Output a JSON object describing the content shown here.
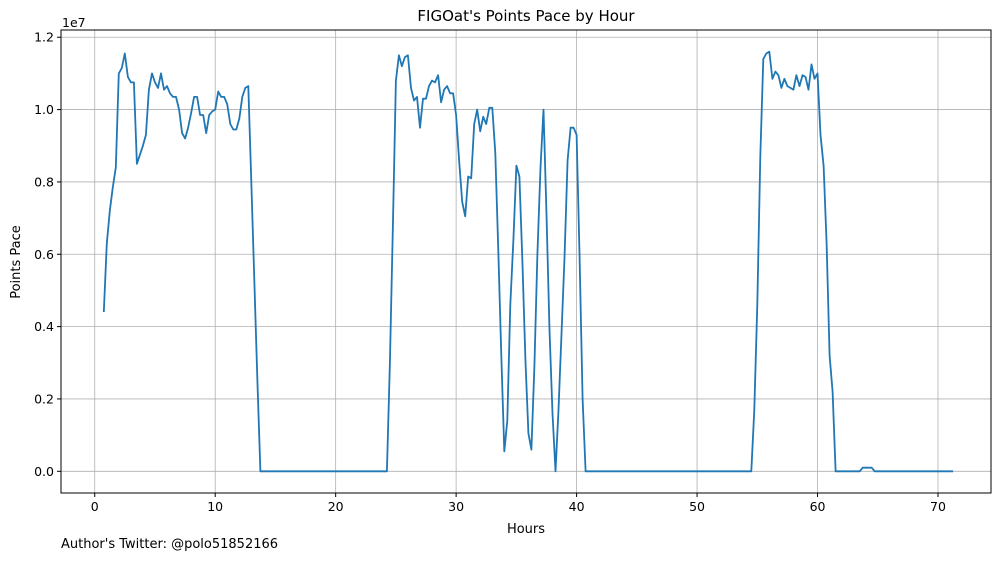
{
  "chart_data": {
    "type": "line",
    "title": "FIGOat's Points Pace by Hour",
    "xlabel": "Hours",
    "ylabel": "Points Pace",
    "y_scale_label": "1e7",
    "xlim": [
      -2.8,
      74.4
    ],
    "ylim": [
      -0.06,
      1.22
    ],
    "x_ticks": [
      0,
      10,
      20,
      30,
      40,
      50,
      60,
      70
    ],
    "x_tick_labels": [
      "0",
      "10",
      "20",
      "30",
      "40",
      "50",
      "60",
      "70"
    ],
    "y_ticks": [
      0.0,
      0.2,
      0.4,
      0.6,
      0.8,
      1.0,
      1.2
    ],
    "y_tick_labels": [
      "0.0",
      "0.2",
      "0.4",
      "0.6",
      "0.8",
      "1.0",
      "1.2"
    ],
    "grid": true,
    "series": [
      {
        "color": "#1f77b4",
        "x": [
          0.75,
          1.0,
          1.25,
          1.5,
          1.75,
          2.0,
          2.25,
          2.5,
          2.75,
          3.0,
          3.25,
          3.5,
          3.75,
          4.0,
          4.25,
          4.5,
          4.75,
          5.0,
          5.25,
          5.5,
          5.75,
          6.0,
          6.25,
          6.5,
          6.75,
          7.0,
          7.25,
          7.5,
          7.75,
          8.0,
          8.25,
          8.5,
          8.75,
          9.0,
          9.25,
          9.5,
          9.75,
          10.0,
          10.25,
          10.5,
          10.75,
          11.0,
          11.25,
          11.5,
          11.75,
          12.0,
          12.25,
          12.5,
          12.75,
          13.0,
          13.25,
          13.5,
          13.75,
          14.0,
          24.25,
          24.5,
          24.75,
          25.0,
          25.25,
          25.5,
          25.75,
          26.0,
          26.25,
          26.5,
          26.75,
          27.0,
          27.25,
          27.5,
          27.75,
          28.0,
          28.25,
          28.5,
          28.75,
          29.0,
          29.25,
          29.5,
          29.75,
          30.0,
          30.25,
          30.5,
          30.75,
          31.0,
          31.25,
          31.5,
          31.75,
          32.0,
          32.25,
          32.5,
          32.75,
          33.0,
          33.25,
          33.5,
          33.75,
          34.0,
          34.25,
          34.5,
          34.75,
          35.0,
          35.25,
          35.5,
          35.75,
          36.0,
          36.25,
          36.5,
          36.75,
          37.0,
          37.25,
          37.5,
          37.75,
          38.0,
          38.25,
          38.5,
          38.75,
          39.0,
          39.25,
          39.5,
          39.75,
          40.0,
          40.25,
          40.5,
          40.75,
          41.0,
          41.25,
          54.5,
          54.75,
          55.0,
          55.25,
          55.5,
          55.75,
          56.0,
          56.25,
          56.5,
          56.75,
          57.0,
          57.25,
          57.5,
          57.75,
          58.0,
          58.25,
          58.5,
          58.75,
          59.0,
          59.25,
          59.5,
          59.75,
          60.0,
          60.25,
          60.5,
          60.75,
          61.0,
          61.25,
          61.5,
          63.5,
          63.75,
          64.0,
          64.25,
          64.5,
          64.75,
          65.0,
          71.25
        ],
        "values": [
          0.44,
          0.63,
          0.72,
          0.785,
          0.84,
          1.1,
          1.115,
          1.155,
          1.09,
          1.075,
          1.075,
          0.85,
          0.875,
          0.9,
          0.93,
          1.055,
          1.1,
          1.075,
          1.06,
          1.1,
          1.055,
          1.065,
          1.045,
          1.035,
          1.035,
          1.0,
          0.935,
          0.92,
          0.95,
          0.99,
          1.035,
          1.035,
          0.985,
          0.985,
          0.935,
          0.985,
          0.995,
          1.0,
          1.05,
          1.035,
          1.035,
          1.015,
          0.96,
          0.945,
          0.945,
          0.975,
          1.035,
          1.06,
          1.065,
          0.8,
          0.53,
          0.25,
          0.0,
          0.0,
          0.0,
          0.3,
          0.68,
          1.08,
          1.15,
          1.12,
          1.145,
          1.15,
          1.06,
          1.025,
          1.035,
          0.95,
          1.03,
          1.03,
          1.065,
          1.08,
          1.075,
          1.095,
          1.02,
          1.055,
          1.065,
          1.045,
          1.045,
          0.985,
          0.86,
          0.745,
          0.705,
          0.815,
          0.81,
          0.96,
          1.0,
          0.94,
          0.98,
          0.96,
          1.005,
          1.005,
          0.88,
          0.61,
          0.32,
          0.055,
          0.14,
          0.46,
          0.64,
          0.845,
          0.815,
          0.58,
          0.31,
          0.105,
          0.06,
          0.29,
          0.6,
          0.84,
          1.0,
          0.71,
          0.39,
          0.16,
          0.0,
          0.17,
          0.38,
          0.59,
          0.86,
          0.95,
          0.95,
          0.93,
          0.59,
          0.2,
          0.0,
          0.0,
          0.0,
          0.0,
          0.17,
          0.46,
          0.87,
          1.14,
          1.155,
          1.16,
          1.085,
          1.105,
          1.095,
          1.06,
          1.085,
          1.065,
          1.06,
          1.055,
          1.095,
          1.065,
          1.095,
          1.09,
          1.055,
          1.125,
          1.085,
          1.1,
          0.93,
          0.845,
          0.63,
          0.32,
          0.22,
          0.0,
          0.0,
          0.01,
          0.01,
          0.01,
          0.01,
          0.0,
          0.0,
          0.0
        ]
      }
    ],
    "footer": "Author's Twitter: @polo51852166"
  }
}
